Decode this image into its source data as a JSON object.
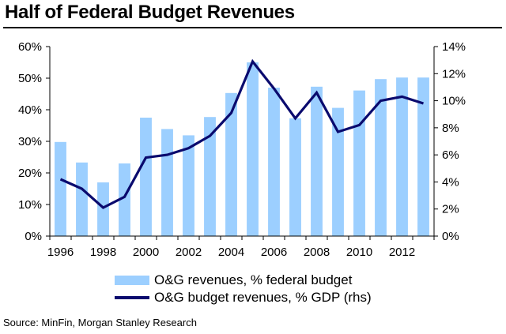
{
  "chart_data": {
    "type": "bar+line",
    "title": "Half of Federal Budget Revenues",
    "source": "Source: MinFin, Morgan Stanley Research",
    "x": [
      1996,
      1997,
      1998,
      1999,
      2000,
      2001,
      2002,
      2003,
      2004,
      2005,
      2006,
      2007,
      2008,
      2009,
      2010,
      2011,
      2012,
      2013
    ],
    "x_tick_labels": [
      "1996",
      "1998",
      "2000",
      "2002",
      "2004",
      "2006",
      "2008",
      "2010",
      "2012"
    ],
    "left_axis": {
      "ylim": [
        0,
        60
      ],
      "tick_labels": [
        "0%",
        "10%",
        "20%",
        "30%",
        "40%",
        "50%",
        "60%"
      ]
    },
    "right_axis": {
      "ylim": [
        0,
        14
      ],
      "tick_labels": [
        "0%",
        "2%",
        "4%",
        "6%",
        "8%",
        "10%",
        "12%",
        "14%"
      ]
    },
    "series": [
      {
        "name": "O&G revenues, % federal budget",
        "type": "bar",
        "axis": "left",
        "color": "#9ccfff",
        "values": [
          29.8,
          23.3,
          17.0,
          23.0,
          37.5,
          33.9,
          31.9,
          37.7,
          45.3,
          55.0,
          47.0,
          37.3,
          47.3,
          40.6,
          46.1,
          49.7,
          50.2,
          50.2
        ]
      },
      {
        "name": "O&G budget revenues, % GDP (rhs)",
        "type": "line",
        "axis": "right",
        "color": "#0a0a6e",
        "values": [
          4.2,
          3.5,
          2.1,
          2.9,
          5.8,
          6.0,
          6.5,
          7.4,
          9.1,
          12.9,
          10.9,
          8.7,
          10.6,
          7.7,
          8.2,
          10.0,
          10.3,
          9.8
        ]
      }
    ]
  }
}
